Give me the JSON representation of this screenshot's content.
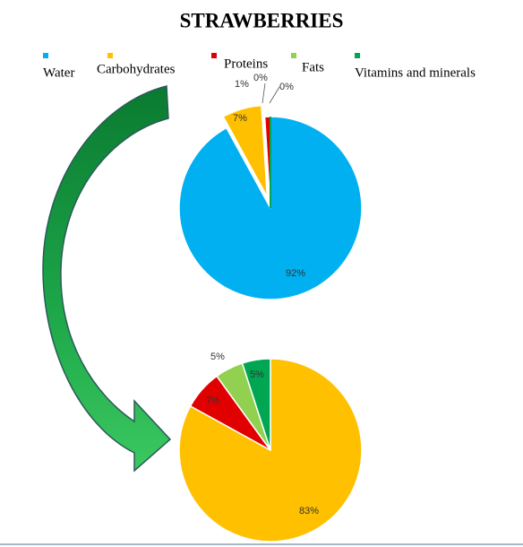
{
  "chart_data": {
    "type": "pie",
    "title": "STRAWBERRIES",
    "categories": [
      "Water",
      "Carbohydrates",
      "Proteins",
      "Fats",
      "Vitamins and minerals"
    ],
    "colors": [
      "#00b0f0",
      "#ffc000",
      "#e00000",
      "#92d050",
      "#00a651"
    ],
    "series": [
      {
        "values": [
          92,
          7,
          1,
          0,
          0
        ],
        "value_labels": [
          "92%",
          "7%",
          "1%",
          "0%",
          "0%"
        ]
      },
      {
        "values": [
          null,
          83,
          7,
          5,
          5
        ],
        "value_labels": [
          null,
          "83%",
          "7%",
          "5%",
          "5%"
        ]
      }
    ]
  }
}
